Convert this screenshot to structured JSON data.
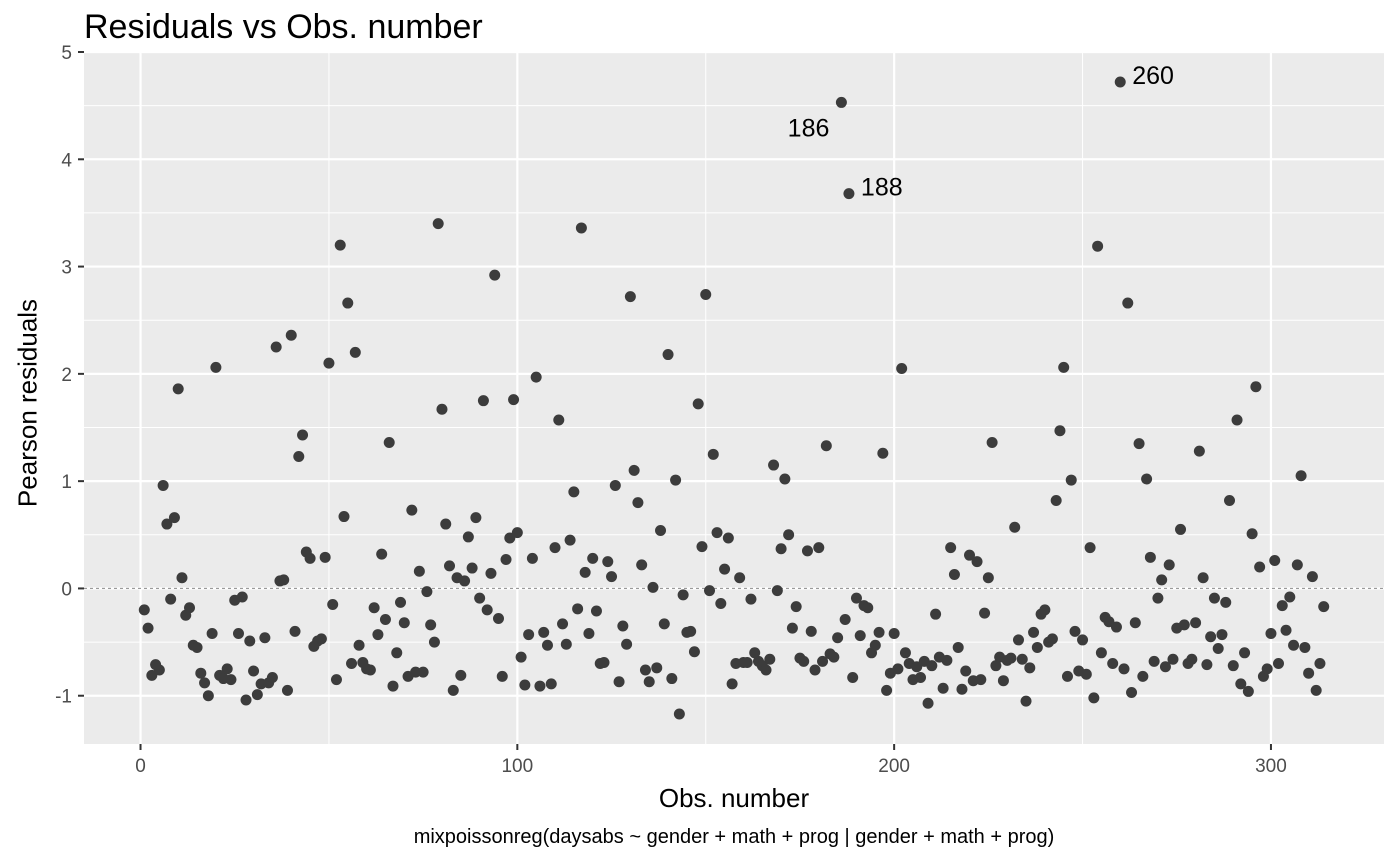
{
  "chart_data": {
    "type": "scatter",
    "title": "Residuals vs Obs. number",
    "xlabel": "Obs. number",
    "ylabel": "Pearson residuals",
    "caption": "mixpoissonreg(daysabs ~ gender + math + prog | gender + math + prog)",
    "xlim": [
      -15,
      330
    ],
    "ylim": [
      -1.45,
      5.0
    ],
    "x_ticks": [
      0,
      100,
      200,
      300
    ],
    "x_tick_labels": [
      "0",
      "100",
      "200",
      "300"
    ],
    "y_ticks": [
      -1,
      0,
      1,
      2,
      3,
      4,
      5
    ],
    "y_tick_labels": [
      "-1",
      "0",
      "1",
      "2",
      "3",
      "4",
      "5"
    ],
    "reference_line": 0,
    "grid": true,
    "colors": {
      "panel": "#ebebeb",
      "grid": "#ffffff",
      "point": "#3c3c3c",
      "reference": "#8c8c8c"
    },
    "annotations": [
      {
        "label": "186",
        "x": 186,
        "y": 4.53
      },
      {
        "label": "188",
        "x": 188,
        "y": 3.68
      },
      {
        "label": "260",
        "x": 260,
        "y": 4.72
      }
    ],
    "points": [
      [
        1,
        -0.2
      ],
      [
        2,
        -0.37
      ],
      [
        3,
        -0.81
      ],
      [
        4,
        -0.71
      ],
      [
        5,
        -0.76
      ],
      [
        6,
        0.96
      ],
      [
        7,
        0.6
      ],
      [
        8,
        -0.1
      ],
      [
        9,
        0.66
      ],
      [
        10,
        1.86
      ],
      [
        11,
        0.1
      ],
      [
        12,
        -0.25
      ],
      [
        13,
        -0.18
      ],
      [
        14,
        -0.53
      ],
      [
        15,
        -0.55
      ],
      [
        16,
        -0.79
      ],
      [
        17,
        -0.88
      ],
      [
        18,
        -1.0
      ],
      [
        19,
        -0.42
      ],
      [
        20,
        2.06
      ],
      [
        21,
        -0.81
      ],
      [
        22,
        -0.84
      ],
      [
        23,
        -0.75
      ],
      [
        24,
        -0.85
      ],
      [
        25,
        -0.11
      ],
      [
        26,
        -0.42
      ],
      [
        27,
        -0.08
      ],
      [
        28,
        -1.04
      ],
      [
        29,
        -0.49
      ],
      [
        30,
        -0.77
      ],
      [
        31,
        -0.99
      ],
      [
        32,
        -0.89
      ],
      [
        33,
        -0.46
      ],
      [
        34,
        -0.88
      ],
      [
        35,
        -0.83
      ],
      [
        36,
        2.25
      ],
      [
        37,
        0.07
      ],
      [
        38,
        0.08
      ],
      [
        39,
        -0.95
      ],
      [
        40,
        2.36
      ],
      [
        41,
        -0.4
      ],
      [
        42,
        1.23
      ],
      [
        43,
        1.43
      ],
      [
        44,
        0.34
      ],
      [
        45,
        0.28
      ],
      [
        46,
        -0.54
      ],
      [
        47,
        -0.49
      ],
      [
        48,
        -0.47
      ],
      [
        49,
        0.29
      ],
      [
        50,
        2.1
      ],
      [
        51,
        -0.15
      ],
      [
        52,
        -0.85
      ],
      [
        53,
        3.2
      ],
      [
        54,
        0.67
      ],
      [
        55,
        2.66
      ],
      [
        56,
        -0.7
      ],
      [
        57,
        2.2
      ],
      [
        58,
        -0.53
      ],
      [
        59,
        -0.69
      ],
      [
        60,
        -0.75
      ],
      [
        61,
        -0.76
      ],
      [
        62,
        -0.18
      ],
      [
        63,
        -0.43
      ],
      [
        64,
        0.32
      ],
      [
        65,
        -0.29
      ],
      [
        66,
        1.36
      ],
      [
        67,
        -0.91
      ],
      [
        68,
        -0.6
      ],
      [
        69,
        -0.13
      ],
      [
        70,
        -0.32
      ],
      [
        71,
        -0.82
      ],
      [
        72,
        0.73
      ],
      [
        73,
        -0.78
      ],
      [
        74,
        0.16
      ],
      [
        75,
        -0.78
      ],
      [
        76,
        -0.03
      ],
      [
        77,
        -0.34
      ],
      [
        78,
        -0.5
      ],
      [
        79,
        3.4
      ],
      [
        80,
        1.67
      ],
      [
        81,
        0.6
      ],
      [
        82,
        0.21
      ],
      [
        83,
        -0.95
      ],
      [
        84,
        0.1
      ],
      [
        85,
        -0.81
      ],
      [
        86,
        0.07
      ],
      [
        87,
        0.48
      ],
      [
        88,
        0.19
      ],
      [
        89,
        0.66
      ],
      [
        90,
        -0.09
      ],
      [
        91,
        1.75
      ],
      [
        92,
        -0.2
      ],
      [
        93,
        0.14
      ],
      [
        94,
        2.92
      ],
      [
        95,
        -0.28
      ],
      [
        96,
        -0.82
      ],
      [
        97,
        0.27
      ],
      [
        98,
        0.47
      ],
      [
        99,
        1.76
      ],
      [
        100,
        0.52
      ],
      [
        101,
        -0.64
      ],
      [
        102,
        -0.9
      ],
      [
        103,
        -0.43
      ],
      [
        104,
        0.28
      ],
      [
        105,
        1.97
      ],
      [
        106,
        -0.91
      ],
      [
        107,
        -0.41
      ],
      [
        108,
        -0.53
      ],
      [
        109,
        -0.89
      ],
      [
        110,
        0.38
      ],
      [
        111,
        1.57
      ],
      [
        112,
        -0.33
      ],
      [
        113,
        -0.52
      ],
      [
        114,
        0.45
      ],
      [
        115,
        0.9
      ],
      [
        116,
        -0.19
      ],
      [
        117,
        3.36
      ],
      [
        118,
        0.15
      ],
      [
        119,
        -0.42
      ],
      [
        120,
        0.28
      ],
      [
        121,
        -0.21
      ],
      [
        122,
        -0.7
      ],
      [
        123,
        -0.69
      ],
      [
        124,
        0.25
      ],
      [
        125,
        0.11
      ],
      [
        126,
        0.96
      ],
      [
        127,
        -0.87
      ],
      [
        128,
        -0.35
      ],
      [
        129,
        -0.52
      ],
      [
        130,
        2.72
      ],
      [
        131,
        1.1
      ],
      [
        132,
        0.8
      ],
      [
        133,
        0.22
      ],
      [
        134,
        -0.76
      ],
      [
        135,
        -0.87
      ],
      [
        136,
        0.01
      ],
      [
        137,
        -0.74
      ],
      [
        138,
        0.54
      ],
      [
        139,
        -0.33
      ],
      [
        140,
        2.18
      ],
      [
        141,
        -0.84
      ],
      [
        142,
        1.01
      ],
      [
        143,
        -1.17
      ],
      [
        144,
        -0.06
      ],
      [
        145,
        -0.41
      ],
      [
        146,
        -0.4
      ],
      [
        147,
        -0.59
      ],
      [
        148,
        1.72
      ],
      [
        149,
        0.39
      ],
      [
        150,
        2.74
      ],
      [
        151,
        -0.02
      ],
      [
        152,
        1.25
      ],
      [
        153,
        0.52
      ],
      [
        154,
        -0.14
      ],
      [
        155,
        0.18
      ],
      [
        156,
        0.47
      ],
      [
        157,
        -0.89
      ],
      [
        158,
        -0.7
      ],
      [
        159,
        0.1
      ],
      [
        160,
        -0.69
      ],
      [
        161,
        -0.69
      ],
      [
        162,
        -0.1
      ],
      [
        163,
        -0.6
      ],
      [
        164,
        -0.68
      ],
      [
        165,
        -0.72
      ],
      [
        166,
        -0.76
      ],
      [
        167,
        -0.66
      ],
      [
        168,
        1.15
      ],
      [
        169,
        -0.02
      ],
      [
        170,
        0.37
      ],
      [
        171,
        1.02
      ],
      [
        172,
        0.5
      ],
      [
        173,
        -0.37
      ],
      [
        174,
        -0.17
      ],
      [
        175,
        -0.65
      ],
      [
        176,
        -0.68
      ],
      [
        177,
        0.35
      ],
      [
        178,
        -0.4
      ],
      [
        179,
        -0.76
      ],
      [
        180,
        0.38
      ],
      [
        181,
        -0.68
      ],
      [
        182,
        1.33
      ],
      [
        183,
        -0.61
      ],
      [
        184,
        -0.64
      ],
      [
        185,
        -0.46
      ],
      [
        186,
        4.53
      ],
      [
        187,
        -0.29
      ],
      [
        188,
        3.68
      ],
      [
        189,
        -0.83
      ],
      [
        190,
        -0.09
      ],
      [
        191,
        -0.44
      ],
      [
        192,
        -0.16
      ],
      [
        193,
        -0.18
      ],
      [
        194,
        -0.6
      ],
      [
        195,
        -0.53
      ],
      [
        196,
        -0.41
      ],
      [
        197,
        1.26
      ],
      [
        198,
        -0.95
      ],
      [
        199,
        -0.79
      ],
      [
        200,
        -0.42
      ],
      [
        201,
        -0.75
      ],
      [
        202,
        2.05
      ],
      [
        203,
        -0.6
      ],
      [
        204,
        -0.7
      ],
      [
        205,
        -0.85
      ],
      [
        206,
        -0.73
      ],
      [
        207,
        -0.83
      ],
      [
        208,
        -0.68
      ],
      [
        209,
        -1.07
      ],
      [
        210,
        -0.72
      ],
      [
        211,
        -0.24
      ],
      [
        212,
        -0.64
      ],
      [
        213,
        -0.93
      ],
      [
        214,
        -0.67
      ],
      [
        215,
        0.38
      ],
      [
        216,
        0.13
      ],
      [
        217,
        -0.55
      ],
      [
        218,
        -0.94
      ],
      [
        219,
        -0.77
      ],
      [
        220,
        0.31
      ],
      [
        221,
        -0.86
      ],
      [
        222,
        0.25
      ],
      [
        223,
        -0.85
      ],
      [
        224,
        -0.23
      ],
      [
        225,
        0.1
      ],
      [
        226,
        1.36
      ],
      [
        227,
        -0.72
      ],
      [
        228,
        -0.64
      ],
      [
        229,
        -0.86
      ],
      [
        230,
        -0.67
      ],
      [
        231,
        -0.65
      ],
      [
        232,
        0.57
      ],
      [
        233,
        -0.48
      ],
      [
        234,
        -0.66
      ],
      [
        235,
        -1.05
      ],
      [
        236,
        -0.74
      ],
      [
        237,
        -0.41
      ],
      [
        238,
        -0.55
      ],
      [
        239,
        -0.24
      ],
      [
        240,
        -0.2
      ],
      [
        241,
        -0.5
      ],
      [
        242,
        -0.47
      ],
      [
        243,
        0.82
      ],
      [
        244,
        1.47
      ],
      [
        245,
        2.06
      ],
      [
        246,
        -0.82
      ],
      [
        247,
        1.01
      ],
      [
        248,
        -0.4
      ],
      [
        249,
        -0.77
      ],
      [
        250,
        -0.48
      ],
      [
        251,
        -0.8
      ],
      [
        252,
        0.38
      ],
      [
        253,
        -1.02
      ],
      [
        254,
        3.19
      ],
      [
        255,
        -0.6
      ],
      [
        256,
        -0.27
      ],
      [
        257,
        -0.31
      ],
      [
        258,
        -0.7
      ],
      [
        259,
        -0.36
      ],
      [
        260,
        4.72
      ],
      [
        261,
        -0.75
      ],
      [
        262,
        2.66
      ],
      [
        263,
        -0.97
      ],
      [
        264,
        -0.32
      ],
      [
        265,
        1.35
      ],
      [
        266,
        -0.82
      ],
      [
        267,
        1.02
      ],
      [
        268,
        0.29
      ],
      [
        269,
        -0.68
      ],
      [
        270,
        -0.09
      ],
      [
        271,
        0.08
      ],
      [
        272,
        -0.73
      ],
      [
        273,
        0.22
      ],
      [
        274,
        -0.66
      ],
      [
        275,
        -0.37
      ],
      [
        276,
        0.55
      ],
      [
        277,
        -0.34
      ],
      [
        278,
        -0.7
      ],
      [
        279,
        -0.66
      ],
      [
        280,
        -0.32
      ],
      [
        281,
        1.28
      ],
      [
        282,
        0.1
      ],
      [
        283,
        -0.71
      ],
      [
        284,
        -0.45
      ],
      [
        285,
        -0.09
      ],
      [
        286,
        -0.56
      ],
      [
        287,
        -0.43
      ],
      [
        288,
        -0.13
      ],
      [
        289,
        0.82
      ],
      [
        290,
        -0.72
      ],
      [
        291,
        1.57
      ],
      [
        292,
        -0.89
      ],
      [
        293,
        -0.6
      ],
      [
        294,
        -0.96
      ],
      [
        295,
        0.51
      ],
      [
        296,
        1.88
      ],
      [
        297,
        0.2
      ],
      [
        298,
        -0.82
      ],
      [
        299,
        -0.75
      ],
      [
        300,
        -0.42
      ],
      [
        301,
        0.26
      ],
      [
        302,
        -0.7
      ],
      [
        303,
        -0.16
      ],
      [
        304,
        -0.39
      ],
      [
        305,
        -0.08
      ],
      [
        306,
        -0.53
      ],
      [
        307,
        0.22
      ],
      [
        308,
        1.05
      ],
      [
        309,
        -0.55
      ],
      [
        310,
        -0.79
      ],
      [
        311,
        0.11
      ],
      [
        312,
        -0.95
      ],
      [
        313,
        -0.7
      ],
      [
        314,
        -0.17
      ]
    ]
  }
}
